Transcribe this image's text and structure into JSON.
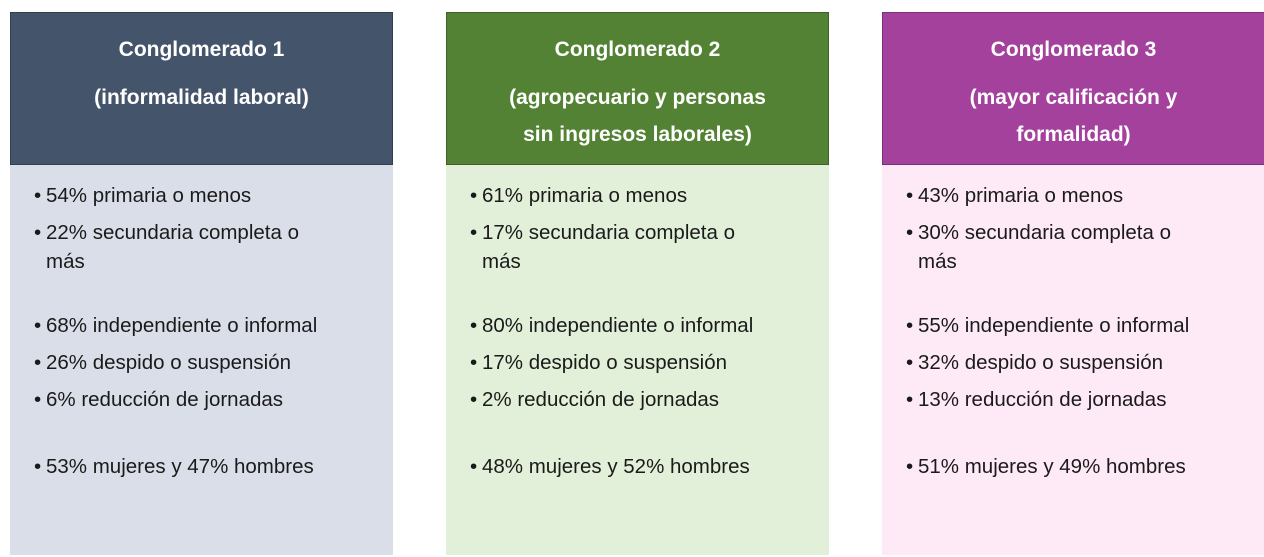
{
  "columns": [
    {
      "title": "Conglomerado 1",
      "subtitle_lines": [
        "(informalidad laboral)"
      ],
      "groups": [
        [
          [
            "54% primaria o menos"
          ],
          [
            "22% secundaria completa o",
            "más"
          ]
        ],
        [
          [
            "68% independiente o informal"
          ],
          [
            "26% despido o suspensión"
          ],
          [
            "6% reducción de jornadas"
          ]
        ],
        [
          [
            "53% mujeres y 47% hombres"
          ]
        ]
      ]
    },
    {
      "title": "Conglomerado 2",
      "subtitle_lines": [
        "(agropecuario y personas",
        "sin ingresos laborales)"
      ],
      "groups": [
        [
          [
            "61% primaria o menos"
          ],
          [
            "17% secundaria completa o",
            "más"
          ]
        ],
        [
          [
            "80% independiente o informal"
          ],
          [
            "17% despido o suspensión"
          ],
          [
            "2% reducción de jornadas"
          ]
        ],
        [
          [
            "48% mujeres y 52% hombres"
          ]
        ]
      ]
    },
    {
      "title": "Conglomerado 3",
      "subtitle_lines": [
        "(mayor calificación y",
        "formalidad)"
      ],
      "groups": [
        [
          [
            "43% primaria o menos"
          ],
          [
            "30% secundaria completa o",
            "más"
          ]
        ],
        [
          [
            "55% independiente o informal"
          ],
          [
            "32% despido o suspensión"
          ],
          [
            "13% reducción de jornadas"
          ]
        ],
        [
          [
            "51% mujeres y 49% hombres"
          ]
        ]
      ]
    }
  ]
}
